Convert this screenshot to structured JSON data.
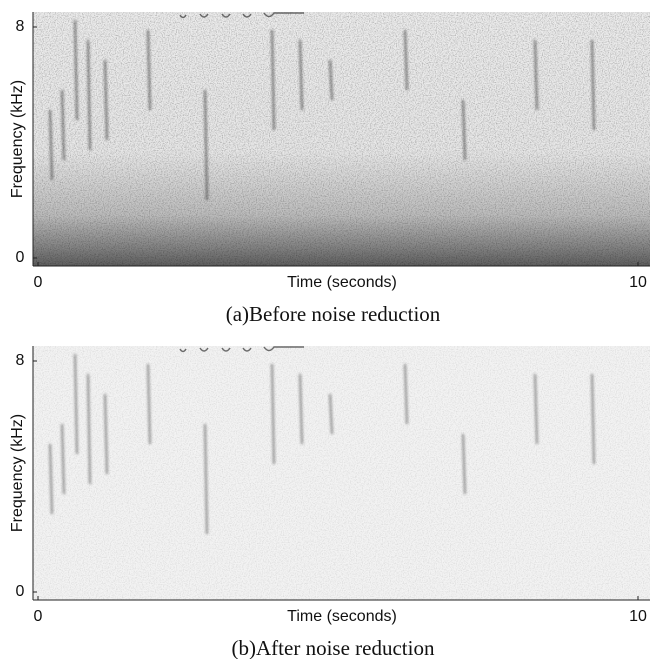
{
  "panels": [
    {
      "y_label": "Frequency (kHz)",
      "x_label": "Time (seconds)",
      "yticks": [
        0,
        8
      ],
      "xticks": [
        0,
        10
      ],
      "caption": "(a)Before noise reduction"
    },
    {
      "y_label": "Frequency (kHz)",
      "x_label": "Time (seconds)",
      "yticks": [
        0,
        8
      ],
      "xticks": [
        0,
        10
      ],
      "caption": "(b)After noise reduction"
    }
  ]
}
